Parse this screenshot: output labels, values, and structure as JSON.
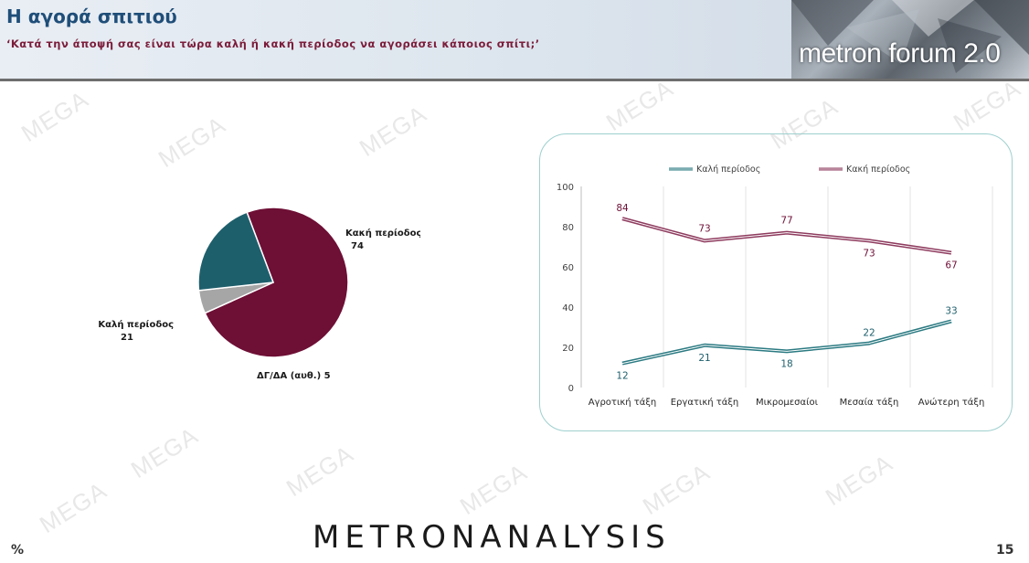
{
  "header": {
    "title": "Η αγορά σπιτιού",
    "subtitle": "‘Κατά την άποψή σας είναι τώρα καλή ή κακή περίοδος να αγοράσει κάποιος σπίτι;’",
    "logo_text": "metron forum 2.0"
  },
  "watermark": "MEGA",
  "footer": {
    "brand": "METRONANALYSIS",
    "unit": "%",
    "page_number": "15"
  },
  "chart_data": [
    {
      "type": "pie",
      "slices": [
        {
          "label": "Κακή περίοδος",
          "value": 74,
          "color": "#6e0f35"
        },
        {
          "label": "ΔΓ/ΔΑ (αυθ.)",
          "value": 5,
          "color": "#a6a6a6"
        },
        {
          "label": "Καλή περίοδος",
          "value": 21,
          "color": "#1e5f6c"
        }
      ]
    },
    {
      "type": "line",
      "categories": [
        "Αγροτική τάξη",
        "Εργατική τάξη",
        "Μικρομεσαίοι",
        "Μεσαία τάξη",
        "Ανώτερη τάξη"
      ],
      "series": [
        {
          "name": "Καλή περίοδος",
          "values": [
            12,
            21,
            18,
            22,
            33
          ],
          "color": "#2b7a82",
          "label_color": "#1e5f6c"
        },
        {
          "name": "Κακή περίοδος",
          "values": [
            84,
            73,
            77,
            73,
            67
          ],
          "color": "#8e3b5e",
          "label_color": "#6e0f35"
        }
      ],
      "ylim": [
        0,
        100
      ],
      "yticks": [
        0,
        20,
        40,
        60,
        80,
        100
      ],
      "grid": "vertical",
      "legend": "top"
    }
  ]
}
